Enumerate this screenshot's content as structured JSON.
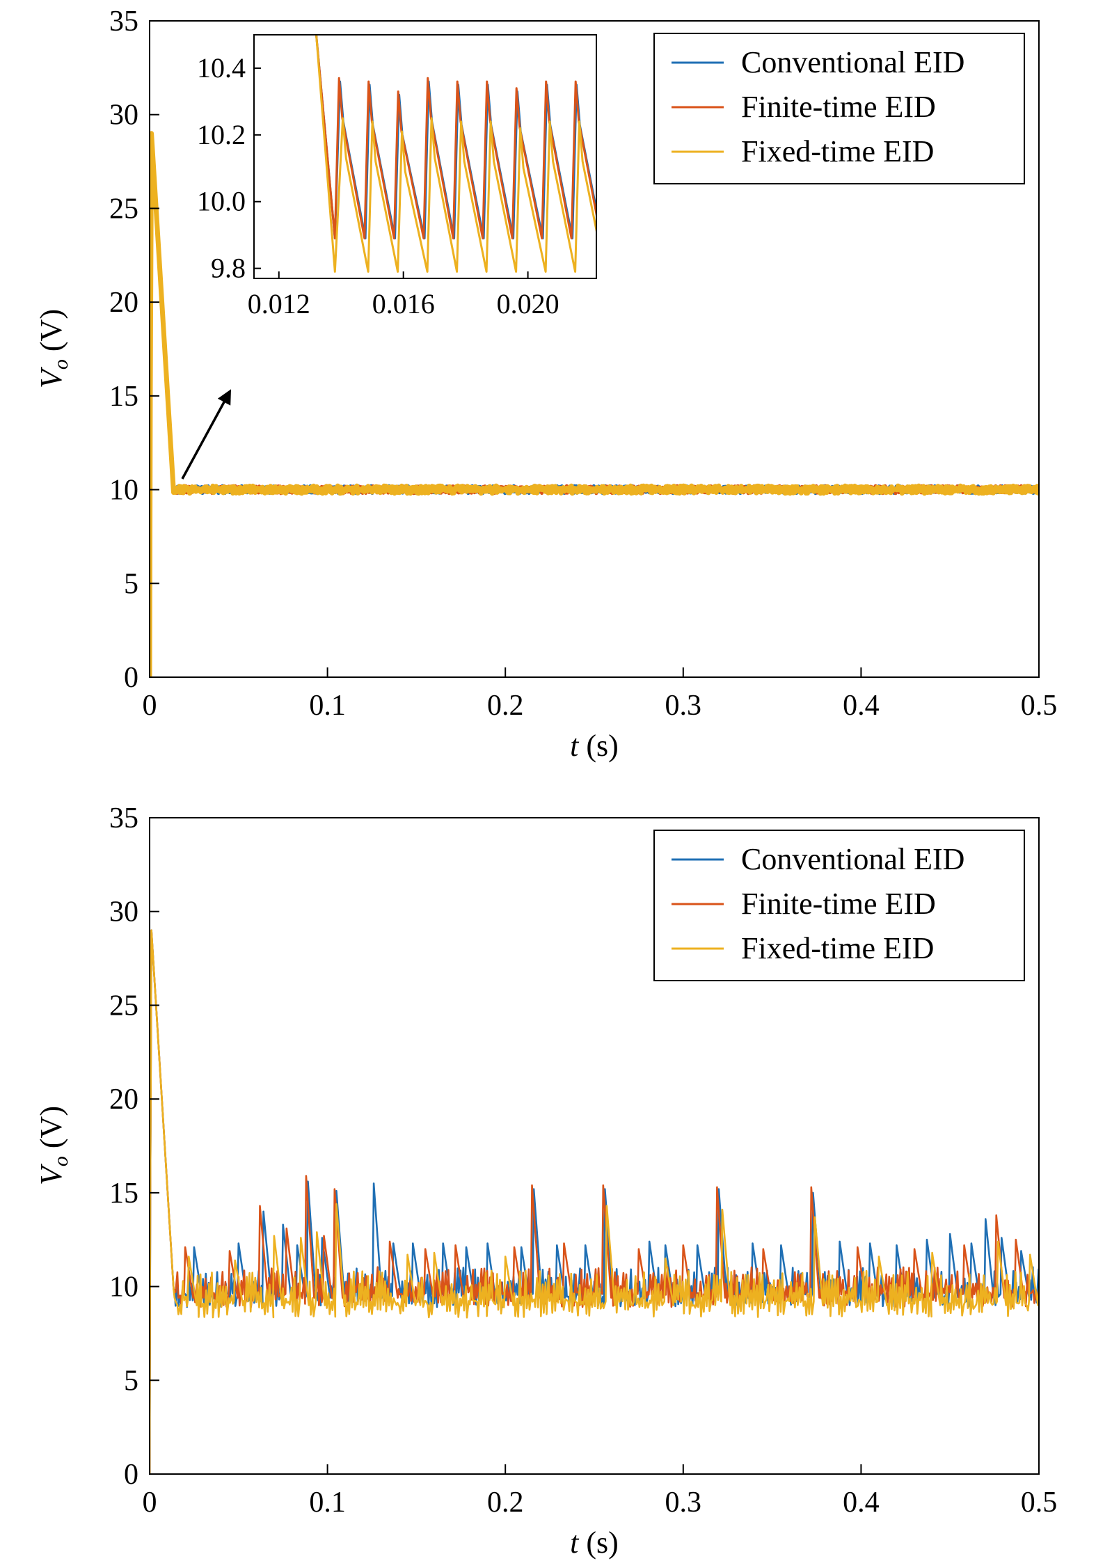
{
  "colors": {
    "conventional": "#1f6fb4",
    "finite": "#d95319",
    "fixed": "#edb120"
  },
  "chart_data": [
    {
      "type": "line",
      "xlabel": {
        "var": "t",
        "unit": " (s)"
      },
      "ylabel": {
        "var": "V",
        "sub": "o",
        "unit": " (V)"
      },
      "xlim": [
        0,
        0.5
      ],
      "ylim": [
        0,
        35
      ],
      "xticks": [
        0,
        0.1,
        0.2,
        0.3,
        0.4,
        0.5
      ],
      "xtick_labels": [
        "0",
        "0.1",
        "0.2",
        "0.3",
        "0.4",
        "0.5"
      ],
      "yticks": [
        0,
        5,
        10,
        15,
        20,
        25,
        30,
        35
      ],
      "ytick_labels": [
        "0",
        "5",
        "10",
        "15",
        "20",
        "25",
        "30",
        "35"
      ],
      "grid": false,
      "legend_position": "top-right",
      "series": [
        {
          "name": "Conventional EID",
          "key": "conventional",
          "steady": 10.0,
          "ripple": 0.22
        },
        {
          "name": "Finite-time EID",
          "key": "finite",
          "steady": 10.0,
          "ripple": 0.24
        },
        {
          "name": "Fixed-time EID",
          "key": "fixed",
          "steady": 10.0,
          "ripple": 0.22
        }
      ],
      "startup": {
        "peak_t": 0.001,
        "peak_v": 29.0,
        "settle_t": 0.0135,
        "settle_v": 9.85
      },
      "annotation": {
        "type": "arrow",
        "points_to": "inset"
      },
      "inset": {
        "xlim": [
          0.0112,
          0.0222
        ],
        "ylim": [
          9.77,
          10.5
        ],
        "xticks": [
          0.012,
          0.016,
          0.02
        ],
        "xtick_labels": [
          "0.012",
          "0.016",
          "0.020"
        ],
        "yticks": [
          9.8,
          10.0,
          10.2,
          10.4
        ],
        "ytick_labels": [
          "9.8",
          "10.0",
          "10.2",
          "10.4"
        ],
        "ramp": {
          "t0": 0.0132,
          "v0": 10.5,
          "t1": 0.0138,
          "v1": 9.89
        },
        "period": 0.00095,
        "series": [
          {
            "key": "conventional",
            "peak": 10.35,
            "trough": 9.89
          },
          {
            "key": "finite",
            "peak": 10.36,
            "trough": 9.89
          },
          {
            "key": "fixed",
            "peak": 10.24,
            "trough": 9.79
          }
        ]
      }
    },
    {
      "type": "line",
      "xlabel": {
        "var": "t",
        "unit": " (s)"
      },
      "ylabel": {
        "var": "V",
        "sub": "o",
        "unit": " (V)"
      },
      "xlim": [
        0,
        0.5
      ],
      "ylim": [
        0,
        35
      ],
      "xticks": [
        0,
        0.1,
        0.2,
        0.3,
        0.4,
        0.5
      ],
      "xtick_labels": [
        "0",
        "0.1",
        "0.2",
        "0.3",
        "0.4",
        "0.5"
      ],
      "yticks": [
        0,
        5,
        10,
        15,
        20,
        25,
        30,
        35
      ],
      "ytick_labels": [
        "0",
        "5",
        "10",
        "15",
        "20",
        "25",
        "30",
        "35"
      ],
      "grid": false,
      "legend_position": "top-right",
      "series": [
        {
          "name": "Conventional EID",
          "key": "conventional",
          "base": 10.0,
          "noise": 1.0,
          "seed": 7,
          "spikes": [
            [
              0.025,
              12.1
            ],
            [
              0.05,
              12.3
            ],
            [
              0.064,
              14.0
            ],
            [
              0.075,
              13.3
            ],
            [
              0.083,
              12.2
            ],
            [
              0.089,
              15.6
            ],
            [
              0.097,
              12.6
            ],
            [
              0.105,
              15.1
            ],
            [
              0.126,
              15.5
            ],
            [
              0.137,
              12.3
            ],
            [
              0.148,
              12.3
            ],
            [
              0.165,
              12.3
            ],
            [
              0.178,
              12.1
            ],
            [
              0.19,
              12.3
            ],
            [
              0.209,
              12.1
            ],
            [
              0.216,
              15.2
            ],
            [
              0.229,
              12.2
            ],
            [
              0.245,
              12.2
            ],
            [
              0.256,
              15.2
            ],
            [
              0.281,
              12.4
            ],
            [
              0.29,
              12.2
            ],
            [
              0.308,
              12.2
            ],
            [
              0.32,
              15.2
            ],
            [
              0.339,
              12.3
            ],
            [
              0.355,
              12.2
            ],
            [
              0.373,
              15.0
            ],
            [
              0.388,
              12.4
            ],
            [
              0.405,
              12.3
            ],
            [
              0.42,
              12.2
            ],
            [
              0.437,
              12.5
            ],
            [
              0.45,
              12.8
            ],
            [
              0.462,
              12.3
            ],
            [
              0.47,
              13.6
            ],
            [
              0.479,
              12.6
            ],
            [
              0.49,
              11.9
            ]
          ]
        },
        {
          "name": "Finite-time EID",
          "key": "finite",
          "base": 10.0,
          "noise": 1.0,
          "seed": 19,
          "spikes": [
            [
              0.02,
              12.1
            ],
            [
              0.045,
              11.9
            ],
            [
              0.062,
              14.3
            ],
            [
              0.077,
              13.1
            ],
            [
              0.088,
              15.9
            ],
            [
              0.098,
              12.7
            ],
            [
              0.104,
              15.2
            ],
            [
              0.135,
              12.4
            ],
            [
              0.155,
              12.0
            ],
            [
              0.172,
              12.2
            ],
            [
              0.205,
              12.1
            ],
            [
              0.215,
              15.4
            ],
            [
              0.233,
              12.3
            ],
            [
              0.255,
              15.4
            ],
            [
              0.275,
              12.0
            ],
            [
              0.3,
              12.2
            ],
            [
              0.319,
              15.3
            ],
            [
              0.345,
              12.0
            ],
            [
              0.372,
              15.3
            ],
            [
              0.398,
              12.1
            ],
            [
              0.43,
              12.0
            ],
            [
              0.458,
              12.2
            ],
            [
              0.476,
              13.8
            ],
            [
              0.487,
              12.5
            ]
          ]
        },
        {
          "name": "Fixed-time EID",
          "key": "fixed",
          "base": 9.6,
          "noise": 1.2,
          "seed": 31,
          "spikes": [
            [
              0.022,
              11.6
            ],
            [
              0.048,
              11.4
            ],
            [
              0.07,
              12.7
            ],
            [
              0.085,
              12.6
            ],
            [
              0.094,
              12.9
            ],
            [
              0.105,
              14.4
            ],
            [
              0.145,
              11.7
            ],
            [
              0.16,
              11.8
            ],
            [
              0.2,
              11.6
            ],
            [
              0.257,
              14.3
            ],
            [
              0.29,
              11.5
            ],
            [
              0.322,
              14.1
            ],
            [
              0.374,
              13.7
            ],
            [
              0.41,
              11.6
            ],
            [
              0.44,
              11.8
            ],
            [
              0.477,
              12.4
            ],
            [
              0.495,
              11.7
            ]
          ]
        }
      ],
      "startup": {
        "peak_t": 0.001,
        "peak_v": 29.0,
        "settle_t": 0.0135,
        "settle_v": 9.85
      }
    }
  ]
}
